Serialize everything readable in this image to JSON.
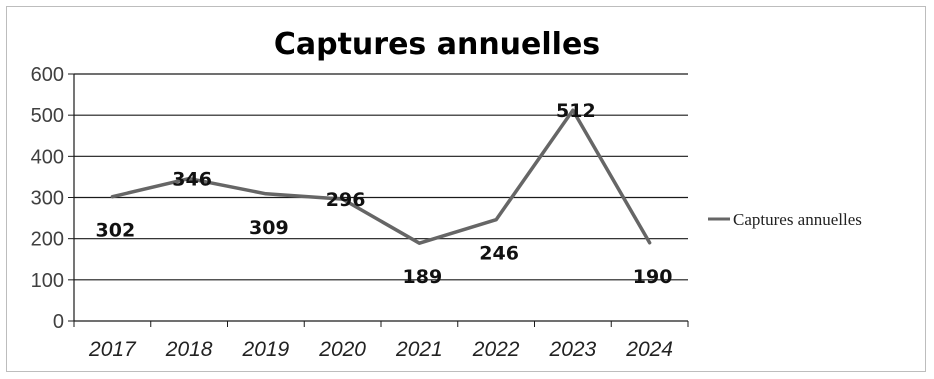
{
  "chart_data": {
    "type": "line",
    "title": "Captures  annuelles",
    "categories": [
      "2017",
      "2018",
      "2019",
      "2020",
      "2021",
      "2022",
      "2023",
      "2024"
    ],
    "series": [
      {
        "name": "Captures annuelles",
        "values": [
          302,
          346,
          309,
          296,
          189,
          246,
          512,
          190
        ],
        "data_labels": [
          "302",
          "346",
          "309",
          "296",
          "189",
          "246",
          "512",
          "190"
        ],
        "color": "#666666"
      }
    ],
    "ylim": [
      0,
      600
    ],
    "yticks": [
      0,
      100,
      200,
      300,
      400,
      500,
      600
    ],
    "grid": true,
    "legend": "right"
  }
}
